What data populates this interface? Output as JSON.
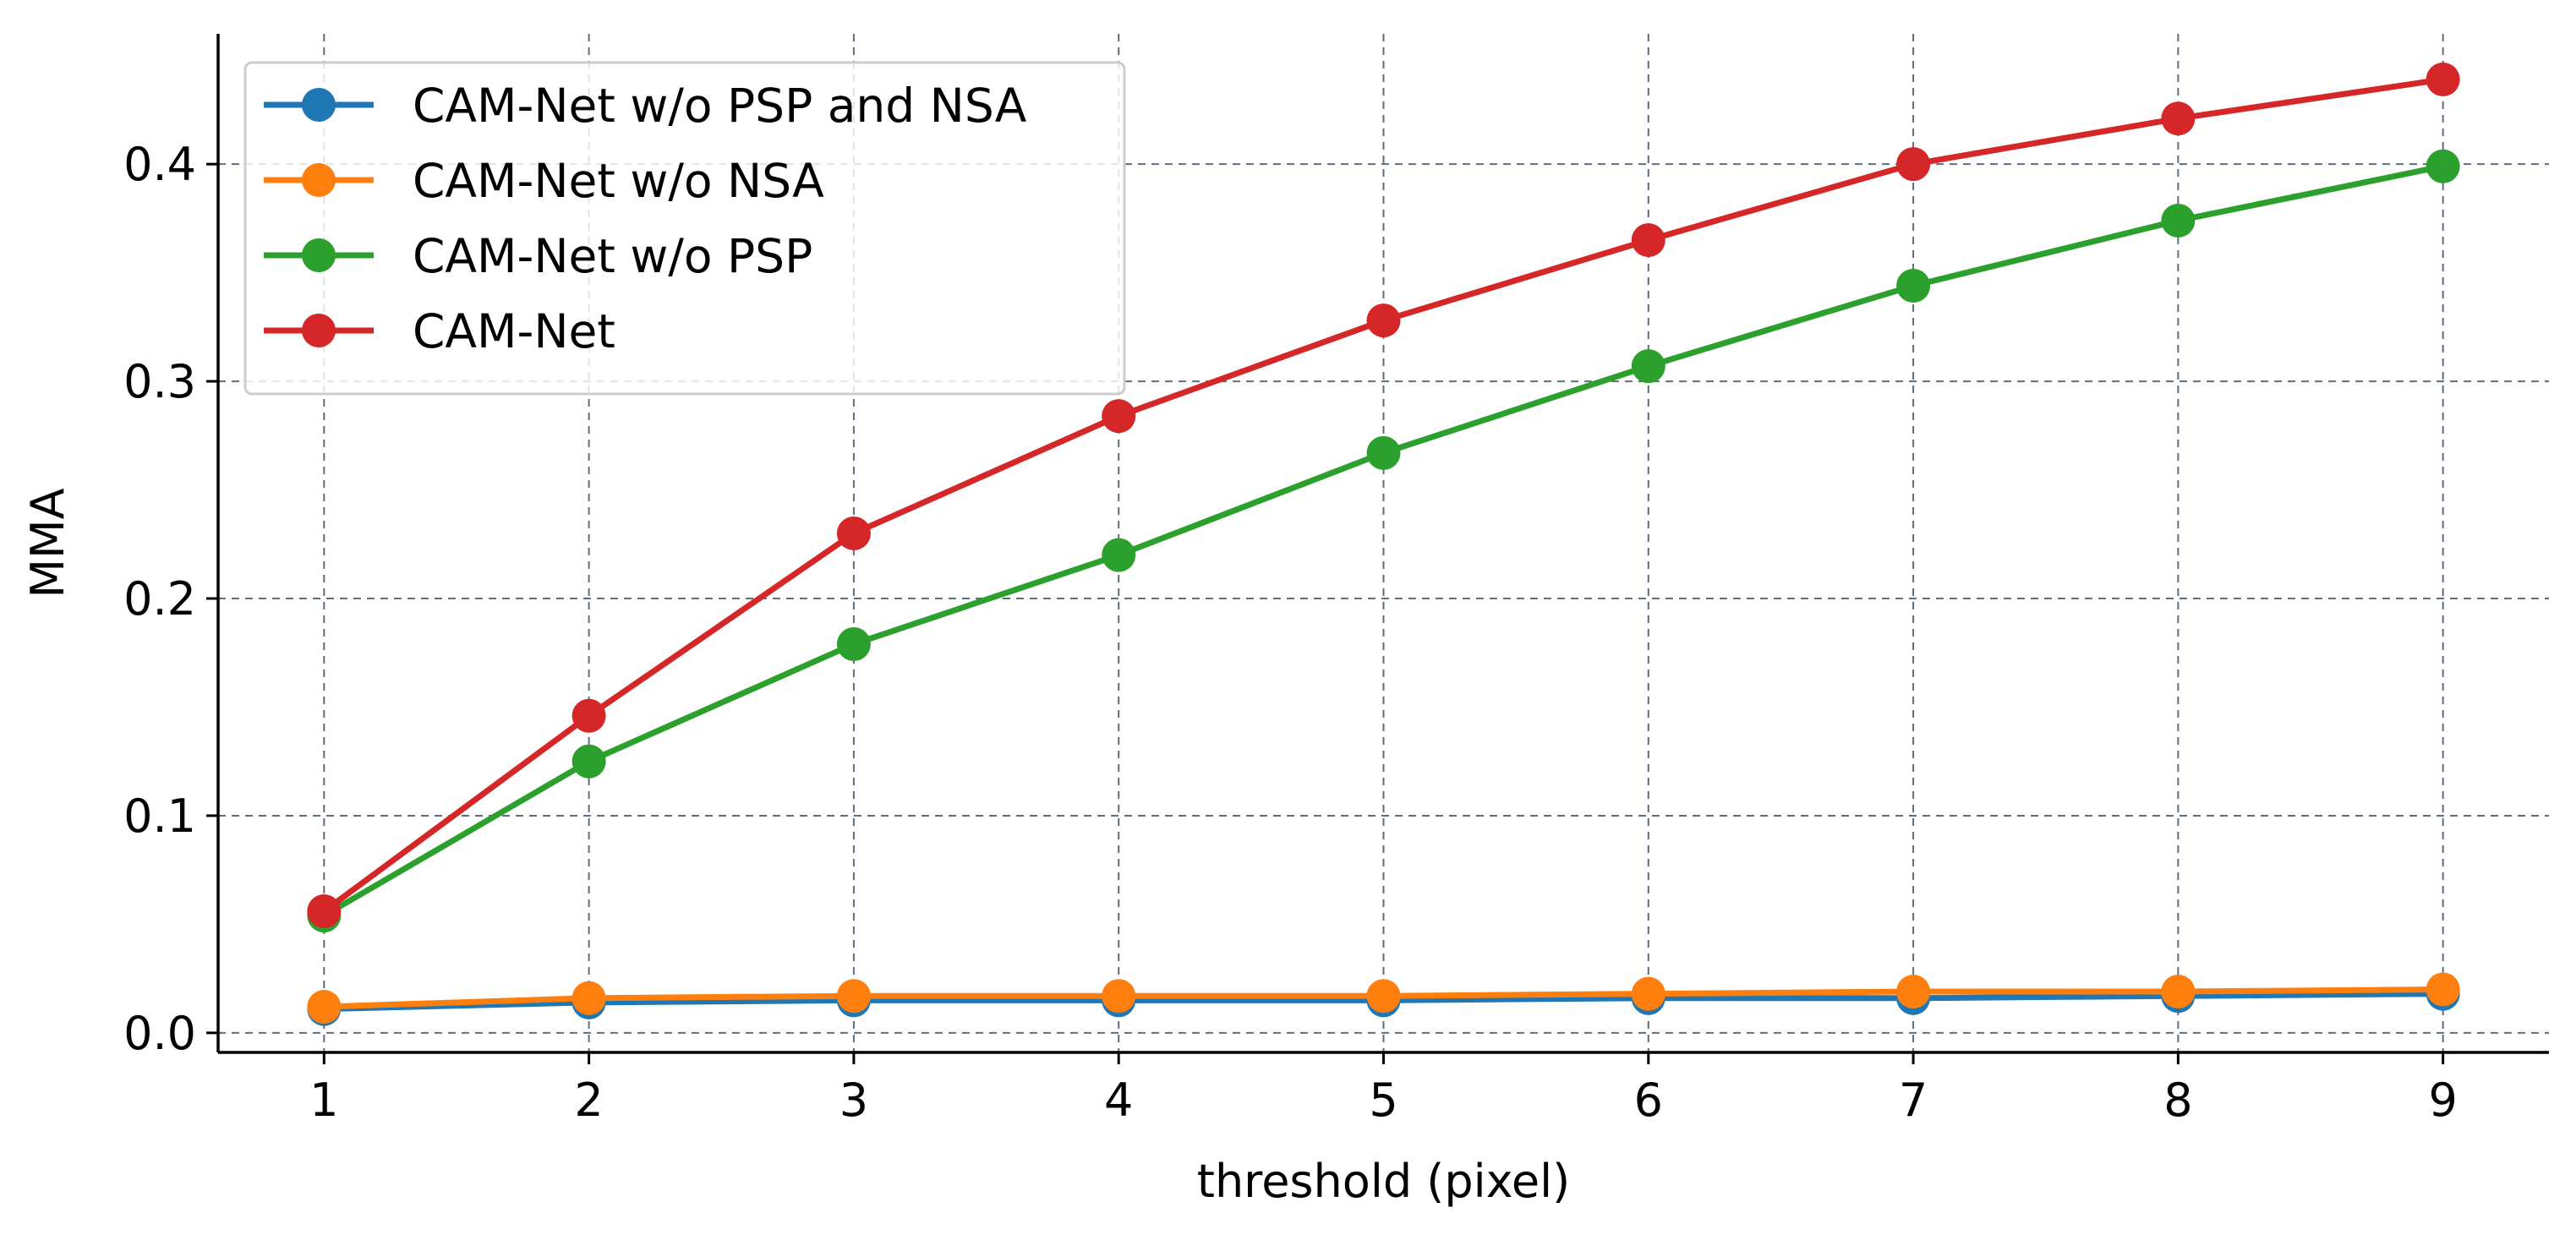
{
  "chart_data": {
    "type": "line",
    "title": "",
    "xlabel": "threshold (pixel)",
    "ylabel": "MMA",
    "x": [
      1,
      2,
      3,
      4,
      5,
      6,
      7,
      8,
      9
    ],
    "xlim": [
      0.6,
      9.4
    ],
    "ylim": [
      -0.009,
      0.46
    ],
    "xticks": [
      1,
      2,
      3,
      4,
      5,
      6,
      7,
      8,
      9
    ],
    "yticks": [
      0.0,
      0.1,
      0.2,
      0.3,
      0.4
    ],
    "ytick_labels": [
      "0.0",
      "0.1",
      "0.2",
      "0.3",
      "0.4"
    ],
    "grid": true,
    "legend_position": "top-left",
    "series": [
      {
        "name": "CAM-Net w/o PSP and NSA",
        "color": "#1f77b4",
        "values": [
          0.011,
          0.014,
          0.015,
          0.015,
          0.015,
          0.016,
          0.016,
          0.017,
          0.018
        ]
      },
      {
        "name": "CAM-Net w/o NSA",
        "color": "#ff7f0e",
        "values": [
          0.012,
          0.016,
          0.017,
          0.017,
          0.017,
          0.018,
          0.019,
          0.019,
          0.02
        ]
      },
      {
        "name": "CAM-Net w/o PSP",
        "color": "#2ca02c",
        "values": [
          0.054,
          0.125,
          0.179,
          0.22,
          0.267,
          0.307,
          0.344,
          0.374,
          0.399
        ]
      },
      {
        "name": "CAM-Net",
        "color": "#d62728",
        "values": [
          0.056,
          0.146,
          0.23,
          0.284,
          0.328,
          0.365,
          0.4,
          0.421,
          0.439
        ]
      }
    ]
  }
}
